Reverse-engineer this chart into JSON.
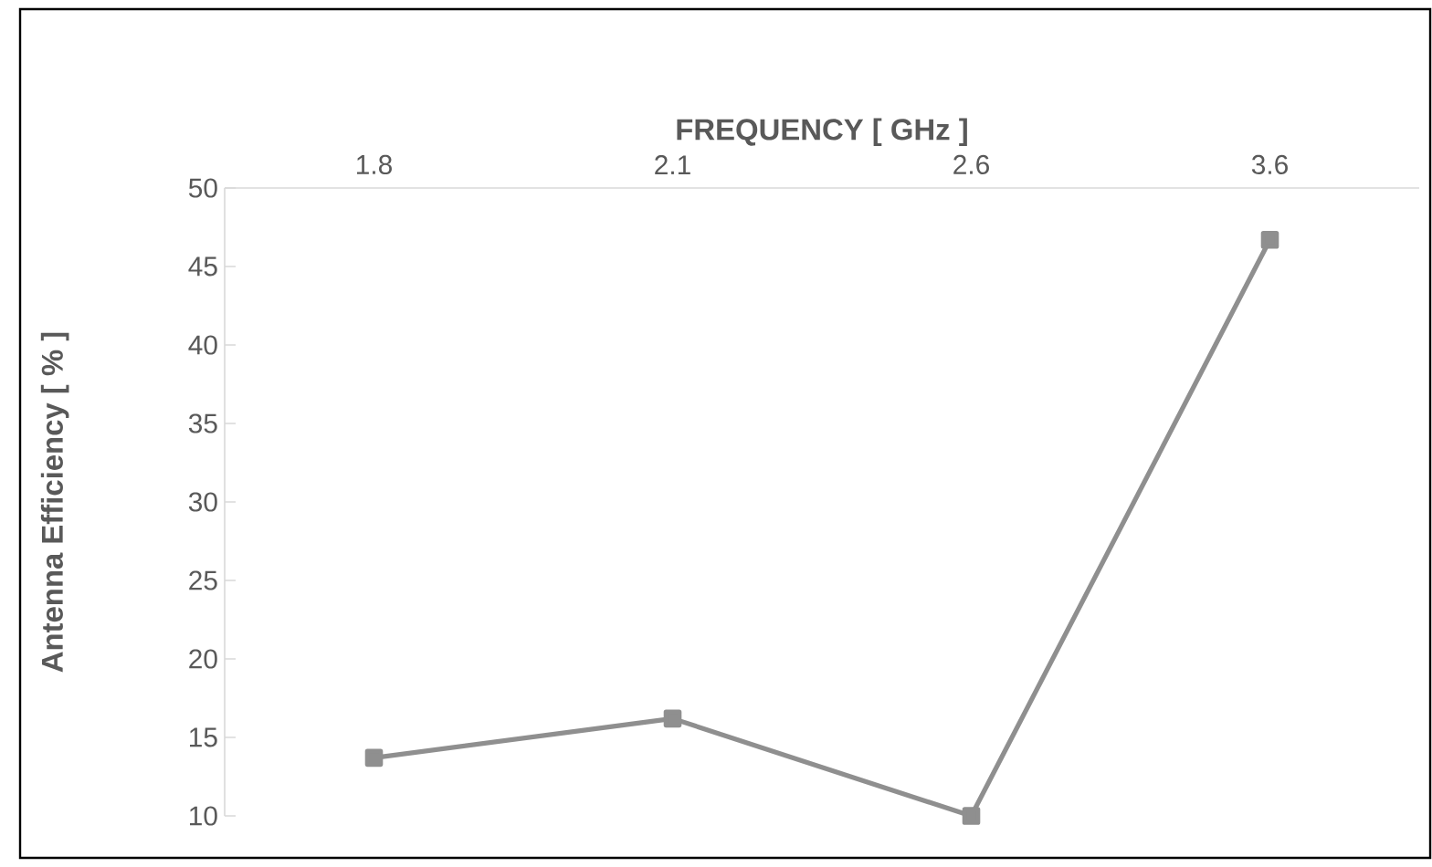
{
  "chart_data": {
    "type": "line",
    "xlabel": "FREQUENCY [ GHz ]",
    "ylabel": "Antenna Efficiency [ % ]",
    "categories": [
      "1.8",
      "2.1",
      "2.6",
      "3.6"
    ],
    "series": [
      {
        "color": "#8f8f8f",
        "values": [
          13.7,
          16.2,
          10.0,
          46.7
        ]
      }
    ],
    "ylim": [
      10,
      50
    ],
    "yticks": [
      10,
      15,
      20,
      25,
      30,
      35,
      40,
      45,
      50
    ],
    "marker": "square",
    "line_style": "solid",
    "grid": false
  }
}
